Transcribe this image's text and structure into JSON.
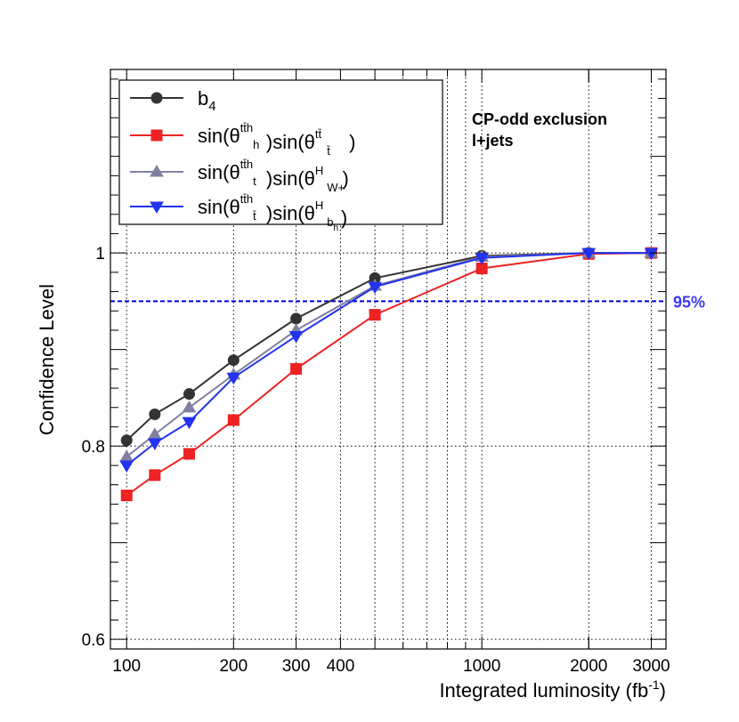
{
  "chart_data": {
    "type": "line",
    "xscale": "log",
    "xlabel": "Integrated luminosity (fb",
    "xlabel_sup": "-1",
    "xlabel_close": ")",
    "ylabel": "Confidence Level",
    "xlim": [
      90,
      3300
    ],
    "ylim": [
      0.59,
      1.19
    ],
    "x_ticks": [
      {
        "value": 100,
        "label": "100"
      },
      {
        "value": 200,
        "label": "200"
      },
      {
        "value": 300,
        "label": "300"
      },
      {
        "value": 400,
        "label": "400"
      },
      {
        "value": 1000,
        "label": "1000"
      },
      {
        "value": 2000,
        "label": "2000"
      },
      {
        "value": 3000,
        "label": "3000"
      }
    ],
    "x_grid": [
      100,
      200,
      300,
      400,
      500,
      600,
      700,
      800,
      900,
      1000,
      2000,
      3000
    ],
    "y_ticks": [
      {
        "value": 0.6,
        "label": "0.6"
      },
      {
        "value": 0.8,
        "label": "0.8"
      },
      {
        "value": 1.0,
        "label": "1"
      }
    ],
    "reference_line": {
      "y": 0.95,
      "label": "95%",
      "color": "#0000dd",
      "label_color": "#3b3bf0"
    },
    "annotation": [
      "CP-odd exclusion",
      "l+jets"
    ],
    "series": [
      {
        "name": "b4",
        "legend": {
          "base": "b",
          "sub": "4"
        },
        "color": "#333333",
        "marker": "circle",
        "x": [
          100,
          120,
          150,
          200,
          300,
          500,
          1000,
          2000,
          3000
        ],
        "y": [
          0.806,
          0.833,
          0.854,
          0.889,
          0.932,
          0.974,
          0.997,
          1.0,
          1.0
        ]
      },
      {
        "name": "sin(theta_h^{ttbarh})sin(theta_tbar^{ttbar})",
        "legend": {
          "parts": [
            "sin(θ",
            "h",
            "tt̄h",
            ")sin(θ",
            "t̄",
            "tt̄",
            ")"
          ]
        },
        "color": "#ee2222",
        "marker": "square",
        "x": [
          100,
          120,
          150,
          200,
          300,
          500,
          1000,
          2000,
          3000
        ],
        "y": [
          0.749,
          0.77,
          0.792,
          0.827,
          0.88,
          0.936,
          0.984,
          0.999,
          1.0
        ]
      },
      {
        "name": "sin(theta_t^{ttbarh})sin(theta_{W+}^{H})",
        "legend": {
          "parts": [
            "sin(θ",
            "t",
            "tt̄h",
            ")sin(θ",
            "W+",
            "H",
            ")"
          ]
        },
        "color": "#8080a0",
        "marker": "triangle-up",
        "x": [
          100,
          120,
          150,
          200,
          300,
          500,
          1000,
          2000,
          3000
        ],
        "y": [
          0.789,
          0.812,
          0.84,
          0.874,
          0.92,
          0.966,
          0.996,
          1.0,
          1.0
        ]
      },
      {
        "name": "sin(theta_tbar^{ttbarh})sin(theta_{b_h}^{H})",
        "legend": {
          "parts": [
            "sin(θ",
            "t̄",
            "tt̄h",
            ")sin(θ",
            "b",
            "H",
            ")"
          ],
          "subsub": "h"
        },
        "color": "#2233ee",
        "marker": "triangle-down",
        "x": [
          100,
          120,
          150,
          200,
          300,
          500,
          1000,
          2000,
          3000
        ],
        "y": [
          0.78,
          0.803,
          0.825,
          0.871,
          0.914,
          0.965,
          0.995,
          1.0,
          1.0
        ]
      }
    ]
  }
}
